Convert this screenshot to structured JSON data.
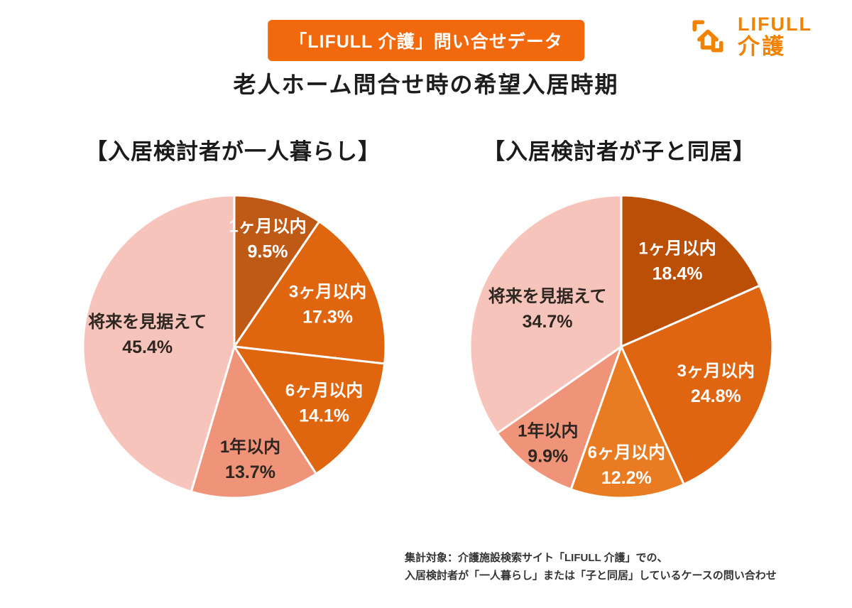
{
  "badge": {
    "label": "「LIFULL 介護」問い合せデータ",
    "bg_color": "#F2690D",
    "text_color": "#FFFFFF"
  },
  "logo": {
    "brand": "LIFULL",
    "sub": "介護",
    "color": "#F08300"
  },
  "title": "老人ホーム問合せ時の希望入居時期",
  "footnote": {
    "lines": [
      "集計対象：介護施設検索サイト「LIFULL 介護」での、",
      "入居検討者が「一人暮らし」または「子と同居」しているケースの問い合わせ"
    ]
  },
  "chart_data": [
    {
      "type": "pie",
      "title": "【入居検討者が一人暮らし】",
      "unit": "%",
      "start_angle_deg": -90,
      "direction": "clockwise",
      "categories": [
        "1ヶ月以内",
        "3ヶ月以内",
        "6ヶ月以内",
        "1年以内",
        "将来を見据えて"
      ],
      "values": [
        9.5,
        17.3,
        14.1,
        13.7,
        45.4
      ],
      "slice_colors": [
        "#BE5A16",
        "#E0650F",
        "#E0650F",
        "#EF9379",
        "#F7C4BC"
      ],
      "label_colors": [
        "#FFFFFF",
        "#FFFFFF",
        "#FFFFFF",
        "#2E2620",
        "#2E2620"
      ],
      "label_radius": [
        0.75,
        0.68,
        0.7,
        0.75,
        0.58
      ],
      "stroke_color": "#FFFFFF"
    },
    {
      "type": "pie",
      "title": "【入居検討者が子と同居】",
      "unit": "%",
      "start_angle_deg": -90,
      "direction": "clockwise",
      "categories": [
        "1ヶ月以内",
        "3ヶ月以内",
        "6ヶ月以内",
        "1年以内",
        "将来を見据えて"
      ],
      "values": [
        18.4,
        24.8,
        12.2,
        9.9,
        34.7
      ],
      "slice_colors": [
        "#BC4F06",
        "#DF6511",
        "#E97B22",
        "#EF9379",
        "#F7C4BC"
      ],
      "label_colors": [
        "#FFFFFF",
        "#FFFFFF",
        "#FFFFFF",
        "#2E2620",
        "#2E2620"
      ],
      "label_radius": [
        0.68,
        0.67,
        0.78,
        0.8,
        0.55
      ],
      "stroke_color": "#FFFFFF"
    }
  ]
}
